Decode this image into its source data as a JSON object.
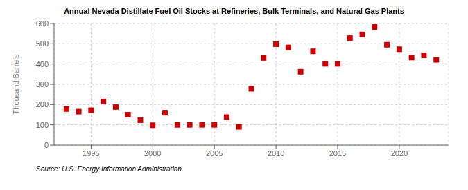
{
  "chart_data": {
    "type": "scatter",
    "title": "Annual Nevada Distillate Fuel Oil Stocks at Refineries, Bulk Terminals, and Natural Gas Plants",
    "y_label": "Thousand Barrels",
    "annotations": [
      "Source: U.S. Energy Information Administration"
    ],
    "x": [
      1993,
      1994,
      1995,
      1996,
      1997,
      1998,
      1999,
      2000,
      2001,
      2002,
      2003,
      2004,
      2005,
      2006,
      2007,
      2008,
      2009,
      2010,
      2011,
      2012,
      2013,
      2014,
      2015,
      2016,
      2017,
      2018,
      2019,
      2020,
      2021,
      2022,
      2023
    ],
    "values": [
      178,
      165,
      172,
      215,
      188,
      150,
      123,
      98,
      160,
      100,
      100,
      100,
      100,
      138,
      90,
      278,
      430,
      498,
      482,
      362,
      463,
      401,
      401,
      528,
      546,
      583,
      495,
      473,
      432,
      443,
      421
    ],
    "color": "#cc0000",
    "marker": "square",
    "xlim": [
      1992,
      2024
    ],
    "xticks": [
      1995,
      2000,
      2005,
      2010,
      2015,
      2020
    ],
    "ylim": [
      0,
      600
    ],
    "yticks": [
      0,
      100,
      200,
      300,
      400,
      500,
      600
    ],
    "grid": true
  }
}
